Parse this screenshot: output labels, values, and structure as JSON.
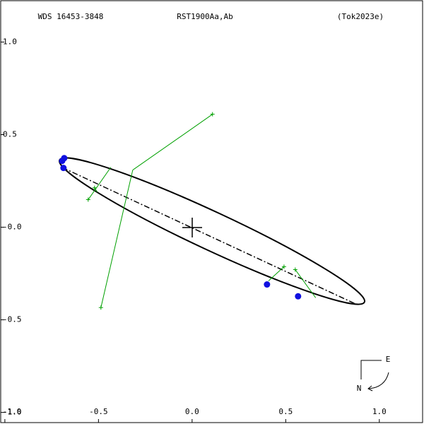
{
  "chart_data": {
    "type": "scatter",
    "annotations": [
      "WDS 16453-3848",
      "RST1900Aa,Ab",
      "(Tok2023e)"
    ],
    "compass": [
      "E",
      "N"
    ],
    "xlim": [
      -1.026,
      1.231
    ],
    "ylim": [
      -1.055,
      1.227
    ],
    "xticks": [
      {
        "value": -1,
        "label": "-1.0"
      },
      -0.5,
      {
        "value": 0,
        "label": "0.0"
      },
      0.5,
      {
        "value": 1,
        "label": "1.0"
      }
    ],
    "yticks": [
      {
        "value": 1,
        "label": "1.0"
      },
      0.5,
      {
        "value": 0,
        "label": "-0.0"
      },
      -0.5,
      {
        "value": -1,
        "label": "-1.0"
      }
    ],
    "grid": false,
    "series": [
      {
        "color": "#00a000",
        "marker": "plus",
        "x": [
          0.109,
          -0.487,
          -0.555,
          -0.521,
          0.491,
          0.551
        ],
        "y": [
          0.61,
          -0.434,
          0.149,
          0.213,
          -0.213,
          -0.229
        ],
        "x_computed": [
          -0.317,
          -0.317,
          -0.434,
          -0.506,
          0.408,
          0.66
        ],
        "y_computed": [
          0.309,
          0.309,
          0.324,
          0.19,
          -0.29,
          -0.381
        ]
      },
      {
        "color": "#1010e0",
        "marker": "dot",
        "x": [
          -0.683,
          -0.694,
          -0.687,
          0.4,
          0.566
        ],
        "y": [
          0.373,
          0.358,
          0.32,
          -0.309,
          -0.373
        ]
      }
    ]
  }
}
